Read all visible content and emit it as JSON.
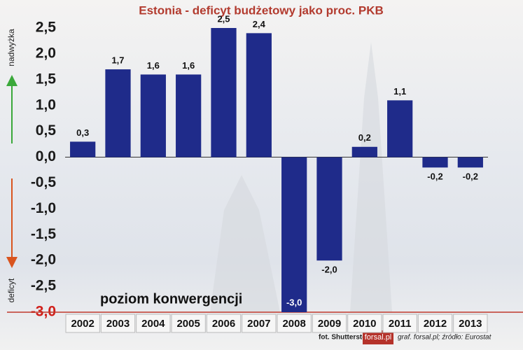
{
  "chart_data": {
    "type": "bar",
    "title": "Estonia - deficyt budżetowy jako proc. PKB",
    "categories": [
      "2002",
      "2003",
      "2004",
      "2005",
      "2006",
      "2007",
      "2008",
      "2009",
      "2010",
      "2011",
      "2012",
      "2013"
    ],
    "values": [
      0.3,
      1.7,
      1.6,
      1.6,
      2.5,
      2.4,
      -3.0,
      -2.0,
      0.2,
      1.1,
      -0.2,
      -0.2
    ],
    "value_labels": [
      "0,3",
      "1,7",
      "1,6",
      "1,6",
      "2,5",
      "2,4",
      "-3,0",
      "-2,0",
      "0,2",
      "1,1",
      "-0,2",
      "-0,2"
    ],
    "color": "#1f2b8a",
    "ylim": [
      -3.0,
      2.5
    ],
    "yticks": [
      {
        "value": 2.5,
        "label": "2,5"
      },
      {
        "value": 2.0,
        "label": "2,0"
      },
      {
        "value": 1.5,
        "label": "1,5"
      },
      {
        "value": 1.0,
        "label": "1,0"
      },
      {
        "value": 0.5,
        "label": "0,5"
      },
      {
        "value": 0,
        "label": "0,0"
      },
      {
        "value": -0.5,
        "label": "-0,5"
      },
      {
        "value": -1.0,
        "label": "-1,0"
      },
      {
        "value": -1.5,
        "label": "-1,5"
      },
      {
        "value": -2.0,
        "label": "-2,0"
      },
      {
        "value": -2.5,
        "label": "-2,5"
      },
      {
        "value": -3.0,
        "label": "-3,0"
      }
    ],
    "y_label_top": "nadwyżka",
    "y_label_bottom": "deficyt",
    "annotation": "poziom konwergencji",
    "photo_credit": "fot. Shutterstock",
    "logo": "forsal.pl",
    "source": "graf. forsal.pl; źródło: Eurostat"
  }
}
